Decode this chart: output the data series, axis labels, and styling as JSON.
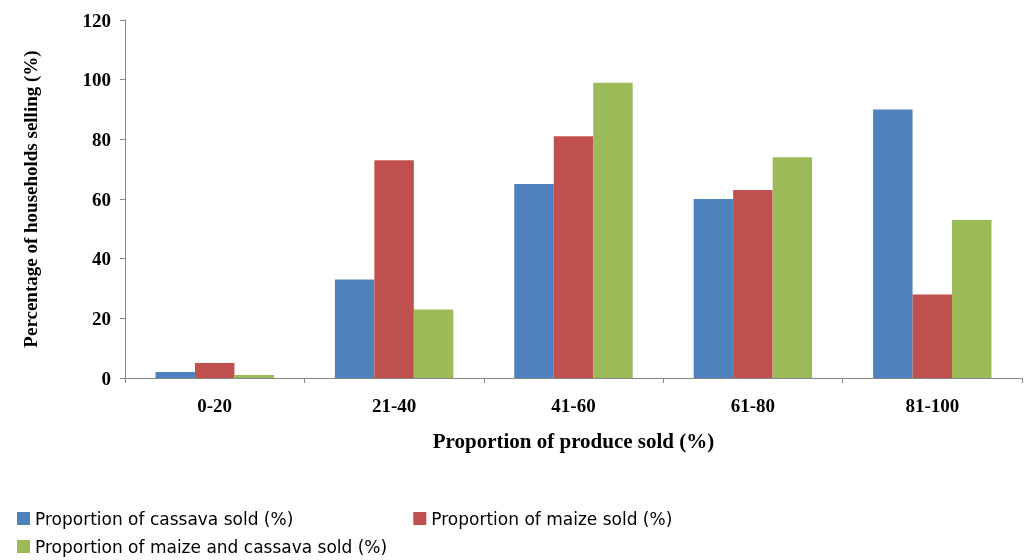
{
  "chart_data": {
    "type": "bar",
    "xlabel": "Proportion of produce sold (%)",
    "ylabel": "Percentage of households selling (%)",
    "categories": [
      "0-20",
      "21-40",
      "41-60",
      "61-80",
      "81-100"
    ],
    "series": [
      {
        "name": "Proportion of cassava sold (%)",
        "color": "#4f81bd",
        "values": [
          2,
          33,
          65,
          60,
          90
        ]
      },
      {
        "name": "Proportion of maize sold (%)",
        "color": "#c0504d",
        "values": [
          5,
          73,
          81,
          63,
          28
        ]
      },
      {
        "name": "Proportion of maize and cassava sold (%)",
        "color": "#9bbb59",
        "values": [
          1,
          23,
          99,
          74,
          53
        ]
      }
    ],
    "ylim": [
      0,
      120
    ],
    "yticks": [
      0,
      20,
      40,
      60,
      80,
      100,
      120
    ],
    "grid": false,
    "legend": "bottom"
  }
}
